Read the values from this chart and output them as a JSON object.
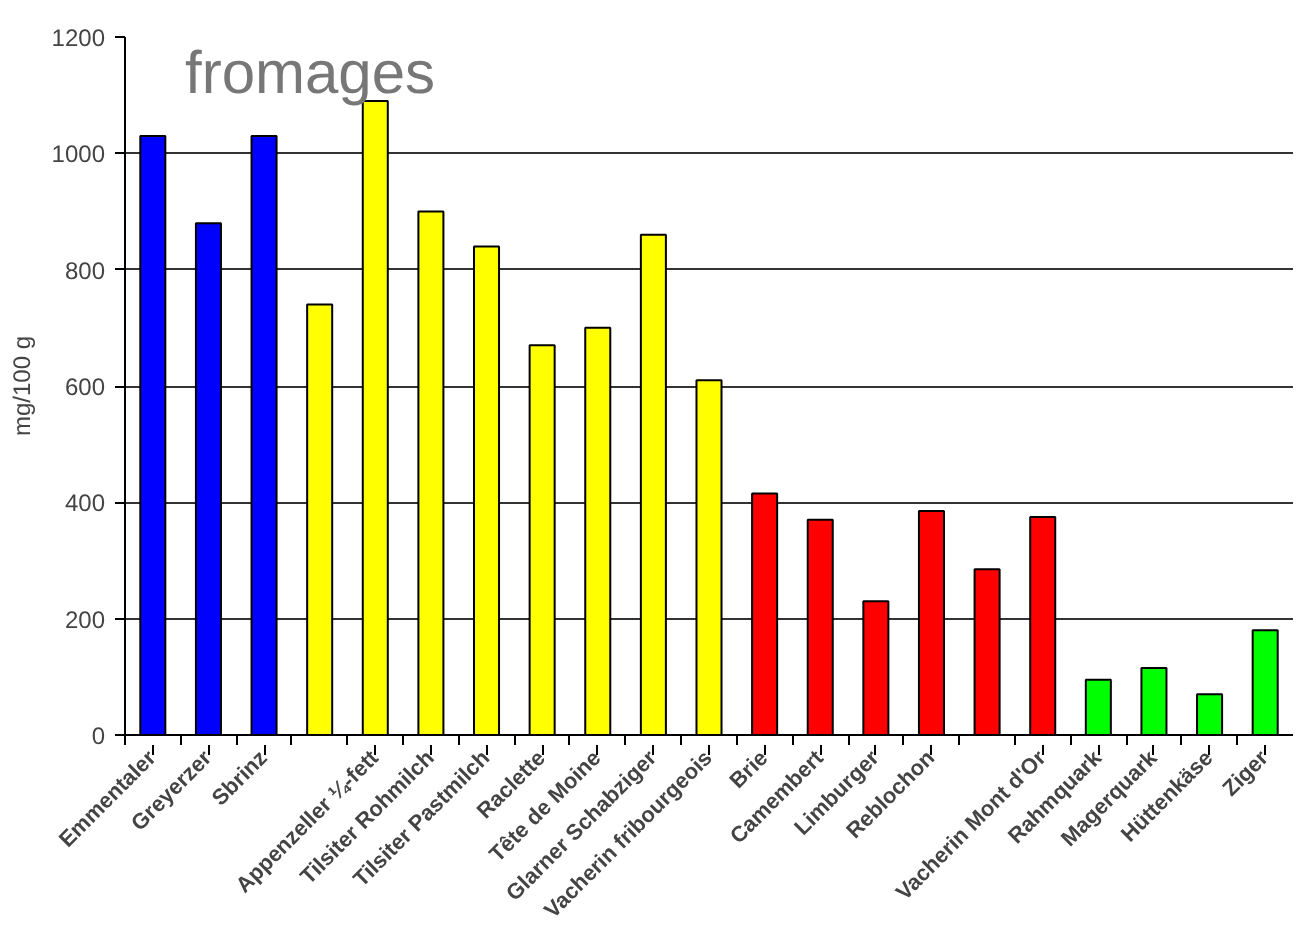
{
  "chart_data": {
    "type": "bar",
    "title": "fromages",
    "ylabel": "mg/100 g",
    "categories": [
      "Emmentaler",
      "Greyerzer",
      "Sbrinz",
      null,
      "Appenzeller ¼-fett",
      "Tilsiter Rohmilch",
      "Tilsiter Pastmilch",
      "Raclette",
      "Tête de Moine",
      "Glarner Schabziger",
      "Vacherin fribourgeois",
      "Brie",
      "Camembert",
      "Limburger",
      "Reblochon",
      null,
      "Vacherin Mont d'Or",
      "Rahmquark",
      "Magerquark",
      "Hüttenkäse",
      "Ziger"
    ],
    "values": [
      1030,
      880,
      1030,
      740,
      1090,
      900,
      840,
      670,
      700,
      860,
      610,
      415,
      370,
      230,
      385,
      285,
      375,
      95,
      115,
      70,
      180
    ],
    "colors": [
      "#0000ff",
      "#0000ff",
      "#0000ff",
      "#ffff00",
      "#ffff00",
      "#ffff00",
      "#ffff00",
      "#ffff00",
      "#ffff00",
      "#ffff00",
      "#ffff00",
      "#ff0000",
      "#ff0000",
      "#ff0000",
      "#ff0000",
      "#ff0000",
      "#ff0000",
      "#00ff00",
      "#00ff00",
      "#00ff00",
      "#00ff00"
    ],
    "ylim": [
      0,
      1200
    ],
    "yticks": [
      0,
      200,
      400,
      600,
      800,
      1000,
      1200
    ],
    "grid": "y"
  }
}
